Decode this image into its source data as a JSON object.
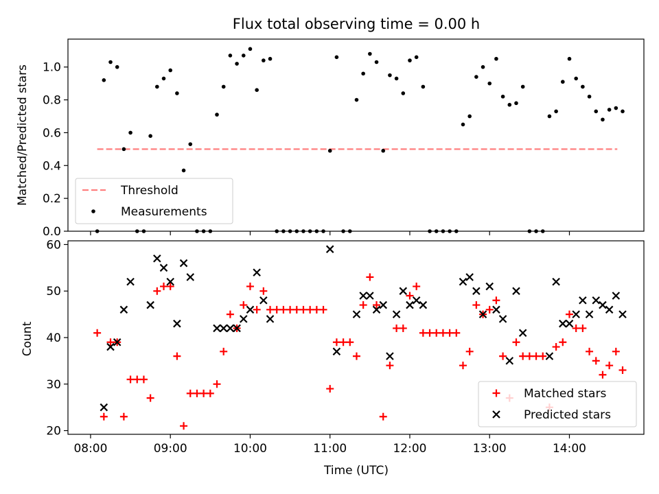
{
  "chart_data": [
    {
      "type": "scatter",
      "title": "Flux total observing time = 0.00 h",
      "ylabel": "Matched/Predicted stars",
      "xlim": [
        "07:43",
        "14:56"
      ],
      "ylim": [
        0,
        1.17
      ],
      "x_ticks": [
        "08:00",
        "09:00",
        "10:00",
        "11:00",
        "12:00",
        "13:00",
        "14:00"
      ],
      "y_ticks": [
        "0.0",
        "0.2",
        "0.4",
        "0.6",
        "0.8",
        "1.0"
      ],
      "legend_position": "lower-left",
      "series": [
        {
          "name": "Threshold",
          "kind": "dashed-line",
          "color": "#ff7f7f",
          "points": [
            [
              "08:05",
              0.5
            ],
            [
              "14:36",
              0.5
            ]
          ]
        },
        {
          "name": "Measurements",
          "kind": "dot",
          "color": "#000000",
          "points": [
            [
              "08:05",
              0.0
            ],
            [
              "08:10",
              0.92
            ],
            [
              "08:15",
              1.03
            ],
            [
              "08:20",
              1.0
            ],
            [
              "08:25",
              0.5
            ],
            [
              "08:30",
              0.6
            ],
            [
              "08:35",
              0.0
            ],
            [
              "08:40",
              0.0
            ],
            [
              "08:45",
              0.58
            ],
            [
              "08:50",
              0.88
            ],
            [
              "08:55",
              0.93
            ],
            [
              "09:00",
              0.98
            ],
            [
              "09:05",
              0.84
            ],
            [
              "09:10",
              0.37
            ],
            [
              "09:15",
              0.53
            ],
            [
              "09:20",
              0.0
            ],
            [
              "09:25",
              0.0
            ],
            [
              "09:30",
              0.0
            ],
            [
              "09:35",
              0.71
            ],
            [
              "09:40",
              0.88
            ],
            [
              "09:45",
              1.07
            ],
            [
              "09:50",
              1.02
            ],
            [
              "09:55",
              1.07
            ],
            [
              "10:00",
              1.11
            ],
            [
              "10:05",
              0.86
            ],
            [
              "10:10",
              1.04
            ],
            [
              "10:15",
              1.05
            ],
            [
              "10:20",
              0.0
            ],
            [
              "10:25",
              0.0
            ],
            [
              "10:30",
              0.0
            ],
            [
              "10:35",
              0.0
            ],
            [
              "10:40",
              0.0
            ],
            [
              "10:45",
              0.0
            ],
            [
              "10:50",
              0.0
            ],
            [
              "10:55",
              0.0
            ],
            [
              "11:00",
              0.49
            ],
            [
              "11:05",
              1.06
            ],
            [
              "11:10",
              0.0
            ],
            [
              "11:15",
              0.0
            ],
            [
              "11:20",
              0.8
            ],
            [
              "11:25",
              0.96
            ],
            [
              "11:30",
              1.08
            ],
            [
              "11:35",
              1.03
            ],
            [
              "11:40",
              0.49
            ],
            [
              "11:45",
              0.95
            ],
            [
              "11:50",
              0.93
            ],
            [
              "11:55",
              0.84
            ],
            [
              "12:00",
              1.04
            ],
            [
              "12:05",
              1.06
            ],
            [
              "12:10",
              0.88
            ],
            [
              "12:15",
              0.0
            ],
            [
              "12:20",
              0.0
            ],
            [
              "12:25",
              0.0
            ],
            [
              "12:30",
              0.0
            ],
            [
              "12:35",
              0.0
            ],
            [
              "12:40",
              0.65
            ],
            [
              "12:45",
              0.7
            ],
            [
              "12:50",
              0.94
            ],
            [
              "12:55",
              1.0
            ],
            [
              "13:00",
              0.9
            ],
            [
              "13:05",
              1.05
            ],
            [
              "13:10",
              0.82
            ],
            [
              "13:15",
              0.77
            ],
            [
              "13:20",
              0.78
            ],
            [
              "13:25",
              0.88
            ],
            [
              "13:30",
              0.0
            ],
            [
              "13:35",
              0.0
            ],
            [
              "13:40",
              0.0
            ],
            [
              "13:45",
              0.7
            ],
            [
              "13:50",
              0.73
            ],
            [
              "13:55",
              0.91
            ],
            [
              "14:00",
              1.05
            ],
            [
              "14:05",
              0.93
            ],
            [
              "14:10",
              0.88
            ],
            [
              "14:15",
              0.82
            ],
            [
              "14:20",
              0.73
            ],
            [
              "14:25",
              0.68
            ],
            [
              "14:30",
              0.74
            ],
            [
              "14:35",
              0.75
            ],
            [
              "14:40",
              0.73
            ]
          ]
        }
      ]
    },
    {
      "type": "scatter",
      "xlabel": "Time (UTC)",
      "ylabel": "Count",
      "xlim": [
        "07:43",
        "14:56"
      ],
      "ylim": [
        19.2,
        60.8
      ],
      "x_ticks": [
        "08:00",
        "09:00",
        "10:00",
        "11:00",
        "12:00",
        "13:00",
        "14:00"
      ],
      "y_ticks": [
        "20",
        "30",
        "40",
        "50",
        "60"
      ],
      "legend_position": "lower-right",
      "series": [
        {
          "name": "Matched stars",
          "marker": "plus",
          "color": "#ff0000",
          "points": [
            [
              "08:05",
              41
            ],
            [
              "08:10",
              23
            ],
            [
              "08:15",
              39
            ],
            [
              "08:20",
              39
            ],
            [
              "08:25",
              23
            ],
            [
              "08:30",
              31
            ],
            [
              "08:35",
              31
            ],
            [
              "08:40",
              31
            ],
            [
              "08:45",
              27
            ],
            [
              "08:50",
              50
            ],
            [
              "08:55",
              51
            ],
            [
              "09:00",
              51
            ],
            [
              "09:05",
              36
            ],
            [
              "09:10",
              21
            ],
            [
              "09:15",
              28
            ],
            [
              "09:20",
              28
            ],
            [
              "09:25",
              28
            ],
            [
              "09:30",
              28
            ],
            [
              "09:35",
              30
            ],
            [
              "09:40",
              37
            ],
            [
              "09:45",
              45
            ],
            [
              "09:50",
              42
            ],
            [
              "09:55",
              47
            ],
            [
              "10:00",
              51
            ],
            [
              "10:05",
              46
            ],
            [
              "10:10",
              50
            ],
            [
              "10:15",
              46
            ],
            [
              "10:20",
              46
            ],
            [
              "10:25",
              46
            ],
            [
              "10:30",
              46
            ],
            [
              "10:35",
              46
            ],
            [
              "10:40",
              46
            ],
            [
              "10:45",
              46
            ],
            [
              "10:50",
              46
            ],
            [
              "10:55",
              46
            ],
            [
              "11:00",
              29
            ],
            [
              "11:05",
              39
            ],
            [
              "11:10",
              39
            ],
            [
              "11:15",
              39
            ],
            [
              "11:20",
              36
            ],
            [
              "11:25",
              47
            ],
            [
              "11:30",
              53
            ],
            [
              "11:35",
              47
            ],
            [
              "11:40",
              23
            ],
            [
              "11:45",
              34
            ],
            [
              "11:50",
              42
            ],
            [
              "11:55",
              42
            ],
            [
              "12:00",
              49
            ],
            [
              "12:05",
              51
            ],
            [
              "12:10",
              41
            ],
            [
              "12:15",
              41
            ],
            [
              "12:20",
              41
            ],
            [
              "12:25",
              41
            ],
            [
              "12:30",
              41
            ],
            [
              "12:35",
              41
            ],
            [
              "12:40",
              34
            ],
            [
              "12:45",
              37
            ],
            [
              "12:50",
              47
            ],
            [
              "12:55",
              45
            ],
            [
              "13:00",
              46
            ],
            [
              "13:05",
              48
            ],
            [
              "13:10",
              36
            ],
            [
              "13:15",
              27
            ],
            [
              "13:20",
              39
            ],
            [
              "13:25",
              36
            ],
            [
              "13:30",
              36
            ],
            [
              "13:35",
              36
            ],
            [
              "13:40",
              36
            ],
            [
              "13:45",
              25
            ],
            [
              "13:50",
              38
            ],
            [
              "13:55",
              39
            ],
            [
              "14:00",
              45
            ],
            [
              "14:05",
              42
            ],
            [
              "14:10",
              42
            ],
            [
              "14:15",
              37
            ],
            [
              "14:20",
              35
            ],
            [
              "14:25",
              32
            ],
            [
              "14:30",
              34
            ],
            [
              "14:35",
              37
            ],
            [
              "14:40",
              33
            ]
          ]
        },
        {
          "name": "Predicted stars",
          "marker": "x",
          "color": "#000000",
          "points": [
            [
              "08:10",
              25
            ],
            [
              "08:15",
              38
            ],
            [
              "08:20",
              39
            ],
            [
              "08:25",
              46
            ],
            [
              "08:30",
              52
            ],
            [
              "08:45",
              47
            ],
            [
              "08:50",
              57
            ],
            [
              "08:55",
              55
            ],
            [
              "09:00",
              52
            ],
            [
              "09:05",
              43
            ],
            [
              "09:10",
              56
            ],
            [
              "09:15",
              53
            ],
            [
              "09:35",
              42
            ],
            [
              "09:40",
              42
            ],
            [
              "09:45",
              42
            ],
            [
              "09:50",
              42
            ],
            [
              "09:55",
              44
            ],
            [
              "10:00",
              46
            ],
            [
              "10:05",
              54
            ],
            [
              "10:10",
              48
            ],
            [
              "10:15",
              44
            ],
            [
              "11:00",
              59
            ],
            [
              "11:05",
              37
            ],
            [
              "11:20",
              45
            ],
            [
              "11:25",
              49
            ],
            [
              "11:30",
              49
            ],
            [
              "11:35",
              46
            ],
            [
              "11:40",
              47
            ],
            [
              "11:45",
              36
            ],
            [
              "11:50",
              45
            ],
            [
              "11:55",
              50
            ],
            [
              "12:00",
              47
            ],
            [
              "12:05",
              48
            ],
            [
              "12:10",
              47
            ],
            [
              "12:40",
              52
            ],
            [
              "12:45",
              53
            ],
            [
              "12:50",
              50
            ],
            [
              "12:55",
              45
            ],
            [
              "13:00",
              51
            ],
            [
              "13:05",
              46
            ],
            [
              "13:10",
              44
            ],
            [
              "13:15",
              35
            ],
            [
              "13:20",
              50
            ],
            [
              "13:25",
              41
            ],
            [
              "13:45",
              36
            ],
            [
              "13:50",
              52
            ],
            [
              "13:55",
              43
            ],
            [
              "14:00",
              43
            ],
            [
              "14:05",
              45
            ],
            [
              "14:10",
              48
            ],
            [
              "14:15",
              45
            ],
            [
              "14:20",
              48
            ],
            [
              "14:25",
              47
            ],
            [
              "14:30",
              46
            ],
            [
              "14:35",
              49
            ],
            [
              "14:40",
              45
            ]
          ]
        }
      ]
    }
  ]
}
